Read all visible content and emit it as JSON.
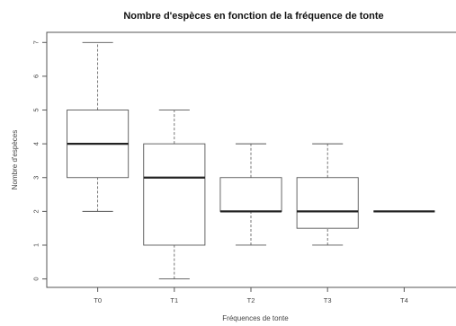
{
  "chart_data": {
    "type": "boxplot",
    "title": "Nombre d'espèces en fonction de la fréquence de tonte",
    "xlabel": "Fréquences de tonte",
    "ylabel": "Nombre d'espèces",
    "categories": [
      "T0",
      "T1",
      "T2",
      "T3",
      "T4"
    ],
    "ylim": [
      -0.25,
      7.3
    ],
    "yticks": [
      0,
      1,
      2,
      3,
      4,
      5,
      6,
      7
    ],
    "grid": false,
    "boxes": [
      {
        "label": "T0",
        "min": 2,
        "q1": 3,
        "median": 4,
        "q3": 5,
        "max": 7
      },
      {
        "label": "T1",
        "min": 0,
        "q1": 1,
        "median": 3,
        "q3": 4,
        "max": 5
      },
      {
        "label": "T2",
        "min": 1,
        "q1": 2,
        "median": 2,
        "q3": 3,
        "max": 4
      },
      {
        "label": "T3",
        "min": 1,
        "q1": 1.5,
        "median": 2,
        "q3": 3,
        "max": 4
      },
      {
        "label": "T4",
        "min": 2,
        "q1": 2,
        "median": 2,
        "q3": 2,
        "max": 2
      }
    ]
  }
}
